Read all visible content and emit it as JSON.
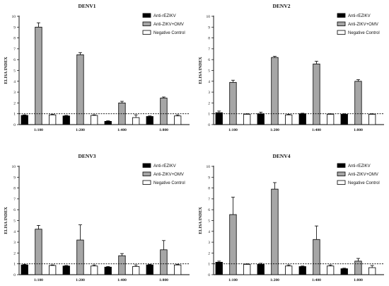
{
  "colors": {
    "Anti-rEZIKV": "#000000",
    "Anti-ZIKV+OMV": "#a6a6a6",
    "Negative Control": "#ffffff"
  },
  "chart_data": [
    {
      "type": "bar",
      "title": "DENV1",
      "xlabel": "",
      "ylabel": "ELISA INDEX",
      "ylim": [
        0,
        10
      ],
      "yticks": [
        0,
        1,
        2,
        3,
        4,
        5,
        6,
        7,
        8,
        9,
        10
      ],
      "categories": [
        "1:100",
        "1:200",
        "1:400",
        "1:800"
      ],
      "reference_line": 1,
      "legend_position": "top-right",
      "series": [
        {
          "name": "Anti-rEZIKV",
          "values": [
            0.85,
            0.8,
            0.3,
            0.75
          ],
          "errors": [
            0.05,
            0.05,
            0.05,
            0.05
          ]
        },
        {
          "name": "Anti-ZIKV+OMV",
          "values": [
            9.0,
            6.45,
            2.0,
            2.45
          ],
          "errors": [
            0.4,
            0.2,
            0.15,
            0.1
          ]
        },
        {
          "name": "Negative Control",
          "values": [
            0.9,
            0.85,
            0.65,
            0.8
          ],
          "errors": [
            0.05,
            0.05,
            0.25,
            0.1
          ]
        }
      ]
    },
    {
      "type": "bar",
      "title": "DENV2",
      "xlabel": "",
      "ylabel": "ELISA INDEX",
      "ylim": [
        0,
        10
      ],
      "yticks": [
        0,
        1,
        2,
        3,
        4,
        5,
        6,
        7,
        8,
        9,
        10
      ],
      "categories": [
        "1:100",
        "1:200",
        "1:400",
        "1:800"
      ],
      "reference_line": 1,
      "legend_position": "top-right",
      "series": [
        {
          "name": "Anti-rEZIKV",
          "values": [
            1.1,
            1.0,
            1.0,
            0.95
          ],
          "errors": [
            0.15,
            0.15,
            0.05,
            0.05
          ]
        },
        {
          "name": "Anti-ZIKV+OMV",
          "values": [
            3.9,
            6.2,
            5.6,
            4.0
          ],
          "errors": [
            0.2,
            0.1,
            0.25,
            0.15
          ]
        },
        {
          "name": "Negative Control",
          "values": [
            0.95,
            0.9,
            0.95,
            0.95
          ],
          "errors": [
            0.05,
            0.05,
            0.05,
            0.05
          ]
        }
      ]
    },
    {
      "type": "bar",
      "title": "DENV3",
      "xlabel": "",
      "ylabel": "ELISA INDEX",
      "ylim": [
        0,
        10
      ],
      "yticks": [
        0,
        1,
        2,
        3,
        4,
        5,
        6,
        7,
        8,
        9,
        10
      ],
      "categories": [
        "1:100",
        "1:200",
        "1:400",
        "1:800"
      ],
      "reference_line": 1,
      "legend_position": "top-right",
      "series": [
        {
          "name": "Anti-rEZIKV",
          "values": [
            0.9,
            0.8,
            0.7,
            0.9
          ],
          "errors": [
            0.05,
            0.05,
            0.05,
            0.05
          ]
        },
        {
          "name": "Anti-ZIKV+OMV",
          "values": [
            4.2,
            3.2,
            1.75,
            2.3
          ],
          "errors": [
            0.35,
            1.4,
            0.2,
            0.85
          ]
        },
        {
          "name": "Negative Control",
          "values": [
            0.85,
            0.8,
            0.75,
            0.9
          ],
          "errors": [
            0.05,
            0.1,
            0.15,
            0.05
          ]
        }
      ]
    },
    {
      "type": "bar",
      "title": "DENV4",
      "xlabel": "",
      "ylabel": "ELISA INDEX",
      "ylim": [
        0,
        10
      ],
      "yticks": [
        0,
        1,
        2,
        3,
        4,
        5,
        6,
        7,
        8,
        9,
        10
      ],
      "categories": [
        "1:100",
        "1:200",
        "1:400",
        "1:800"
      ],
      "reference_line": 1,
      "legend_position": "top-right",
      "series": [
        {
          "name": "Anti-rEZIKV",
          "values": [
            1.15,
            0.95,
            0.75,
            0.55
          ],
          "errors": [
            0.1,
            0.1,
            0.05,
            0.05
          ]
        },
        {
          "name": "Anti-ZIKV+OMV",
          "values": [
            5.55,
            7.9,
            3.25,
            1.25
          ],
          "errors": [
            1.6,
            0.6,
            1.25,
            0.25
          ]
        },
        {
          "name": "Negative Control",
          "values": [
            0.95,
            0.8,
            0.8,
            0.65
          ],
          "errors": [
            0.05,
            0.1,
            0.1,
            0.2
          ]
        }
      ]
    }
  ]
}
